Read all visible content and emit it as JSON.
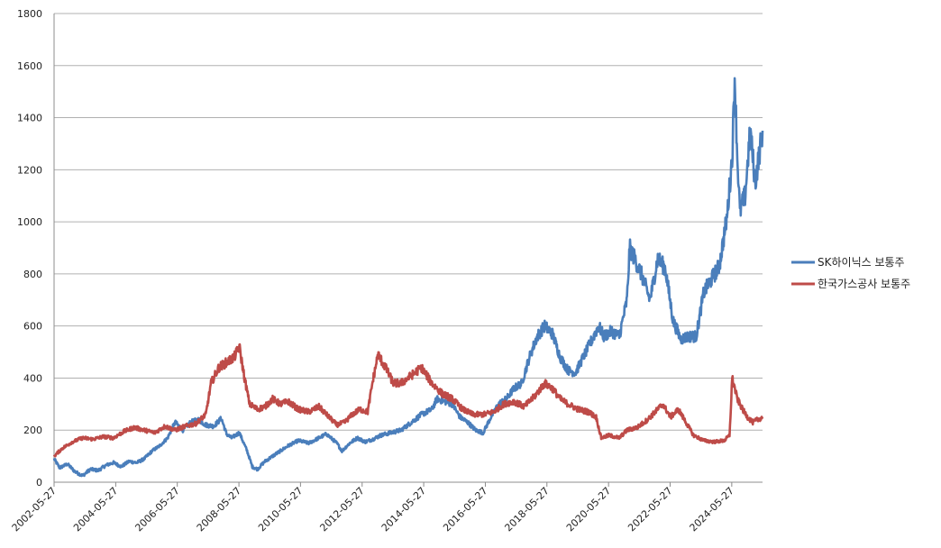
{
  "chart_data": {
    "type": "line",
    "title": "",
    "xlabel": "",
    "ylabel": "",
    "ylim": [
      0,
      1800
    ],
    "yticks": [
      0,
      200,
      400,
      600,
      800,
      1000,
      1200,
      1400,
      1600,
      1800
    ],
    "xlim": [
      "2002-05-27",
      "2025-05-27"
    ],
    "xtick_labels": [
      "2002-05-27",
      "2004-05-27",
      "2006-05-27",
      "2008-05-27",
      "2010-05-27",
      "2012-05-27",
      "2014-05-27",
      "2016-05-27",
      "2018-05-27",
      "2020-05-27",
      "2022-05-27",
      "2024-05-27"
    ],
    "grid": "horizontal",
    "legend": "right",
    "series": [
      {
        "name": "SK하이닉스 보통주",
        "color": "#4a7ebb",
        "points": [
          [
            "2002-05-27",
            90
          ],
          [
            "2002-08-01",
            55
          ],
          [
            "2002-11-01",
            70
          ],
          [
            "2003-02-01",
            40
          ],
          [
            "2003-05-01",
            25
          ],
          [
            "2003-08-01",
            50
          ],
          [
            "2003-11-01",
            45
          ],
          [
            "2004-02-01",
            65
          ],
          [
            "2004-05-01",
            75
          ],
          [
            "2004-08-01",
            60
          ],
          [
            "2004-11-01",
            80
          ],
          [
            "2005-02-01",
            75
          ],
          [
            "2005-05-01",
            90
          ],
          [
            "2005-08-01",
            120
          ],
          [
            "2005-11-01",
            140
          ],
          [
            "2006-02-01",
            170
          ],
          [
            "2006-05-01",
            230
          ],
          [
            "2006-08-01",
            200
          ],
          [
            "2006-11-01",
            230
          ],
          [
            "2007-02-01",
            240
          ],
          [
            "2007-05-01",
            220
          ],
          [
            "2007-08-01",
            215
          ],
          [
            "2007-11-01",
            245
          ],
          [
            "2008-01-01",
            185
          ],
          [
            "2008-03-01",
            170
          ],
          [
            "2008-06-01",
            190
          ],
          [
            "2008-09-01",
            120
          ],
          [
            "2008-11-01",
            60
          ],
          [
            "2009-01-01",
            50
          ],
          [
            "2009-04-01",
            80
          ],
          [
            "2009-07-01",
            100
          ],
          [
            "2009-10-01",
            120
          ],
          [
            "2010-01-01",
            140
          ],
          [
            "2010-05-01",
            160
          ],
          [
            "2010-09-01",
            150
          ],
          [
            "2011-01-01",
            170
          ],
          [
            "2011-04-01",
            185
          ],
          [
            "2011-08-01",
            150
          ],
          [
            "2011-10-01",
            120
          ],
          [
            "2012-01-01",
            150
          ],
          [
            "2012-04-01",
            170
          ],
          [
            "2012-07-01",
            155
          ],
          [
            "2012-10-01",
            165
          ],
          [
            "2013-01-01",
            180
          ],
          [
            "2013-05-01",
            190
          ],
          [
            "2013-09-01",
            200
          ],
          [
            "2014-01-01",
            230
          ],
          [
            "2014-05-01",
            260
          ],
          [
            "2014-09-01",
            280
          ],
          [
            "2014-11-01",
            320
          ],
          [
            "2015-02-01",
            310
          ],
          [
            "2015-05-01",
            300
          ],
          [
            "2015-08-01",
            250
          ],
          [
            "2015-11-01",
            230
          ],
          [
            "2016-02-01",
            200
          ],
          [
            "2016-05-01",
            190
          ],
          [
            "2016-08-01",
            250
          ],
          [
            "2016-11-01",
            300
          ],
          [
            "2017-02-01",
            320
          ],
          [
            "2017-05-01",
            360
          ],
          [
            "2017-08-01",
            380
          ],
          [
            "2017-11-01",
            480
          ],
          [
            "2018-02-01",
            560
          ],
          [
            "2018-05-01",
            600
          ],
          [
            "2018-08-01",
            570
          ],
          [
            "2018-11-01",
            480
          ],
          [
            "2019-02-01",
            430
          ],
          [
            "2019-05-01",
            420
          ],
          [
            "2019-08-01",
            480
          ],
          [
            "2019-11-01",
            540
          ],
          [
            "2020-02-01",
            600
          ],
          [
            "2020-04-01",
            560
          ],
          [
            "2020-07-01",
            580
          ],
          [
            "2020-10-01",
            560
          ],
          [
            "2021-01-01",
            700
          ],
          [
            "2021-02-01",
            900
          ],
          [
            "2021-04-01",
            860
          ],
          [
            "2021-07-01",
            790
          ],
          [
            "2021-10-01",
            700
          ],
          [
            "2022-01-01",
            860
          ],
          [
            "2022-04-01",
            820
          ],
          [
            "2022-07-01",
            620
          ],
          [
            "2022-10-01",
            550
          ],
          [
            "2023-01-01",
            560
          ],
          [
            "2023-04-01",
            560
          ],
          [
            "2023-07-01",
            730
          ],
          [
            "2023-10-01",
            780
          ],
          [
            "2024-01-01",
            830
          ],
          [
            "2024-04-01",
            1020
          ],
          [
            "2024-06-01",
            1250
          ],
          [
            "2024-07-01",
            1560
          ],
          [
            "2024-08-01",
            1250
          ],
          [
            "2024-09-01",
            1040
          ],
          [
            "2024-11-01",
            1100
          ],
          [
            "2025-01-01",
            1350
          ],
          [
            "2025-03-01",
            1150
          ],
          [
            "2025-05-27",
            1350
          ]
        ]
      },
      {
        "name": "한국가스공사 보통주",
        "color": "#be4b48",
        "points": [
          [
            "2002-05-27",
            100
          ],
          [
            "2002-09-01",
            130
          ],
          [
            "2003-01-01",
            155
          ],
          [
            "2003-05-01",
            170
          ],
          [
            "2003-09-01",
            165
          ],
          [
            "2004-01-01",
            175
          ],
          [
            "2004-05-01",
            170
          ],
          [
            "2004-09-01",
            195
          ],
          [
            "2005-01-01",
            210
          ],
          [
            "2005-05-01",
            200
          ],
          [
            "2005-09-01",
            190
          ],
          [
            "2006-01-01",
            215
          ],
          [
            "2006-05-01",
            200
          ],
          [
            "2006-09-01",
            215
          ],
          [
            "2007-01-01",
            225
          ],
          [
            "2007-05-01",
            260
          ],
          [
            "2007-07-01",
            380
          ],
          [
            "2007-10-01",
            440
          ],
          [
            "2008-01-01",
            460
          ],
          [
            "2008-04-01",
            480
          ],
          [
            "2008-06-01",
            520
          ],
          [
            "2008-08-01",
            400
          ],
          [
            "2008-10-01",
            300
          ],
          [
            "2009-01-01",
            280
          ],
          [
            "2009-04-01",
            290
          ],
          [
            "2009-07-01",
            320
          ],
          [
            "2009-10-01",
            300
          ],
          [
            "2010-01-01",
            310
          ],
          [
            "2010-05-01",
            280
          ],
          [
            "2010-09-01",
            270
          ],
          [
            "2011-01-01",
            290
          ],
          [
            "2011-04-01",
            260
          ],
          [
            "2011-08-01",
            220
          ],
          [
            "2011-11-01",
            230
          ],
          [
            "2012-02-01",
            260
          ],
          [
            "2012-05-01",
            280
          ],
          [
            "2012-08-01",
            270
          ],
          [
            "2012-10-01",
            390
          ],
          [
            "2012-12-01",
            490
          ],
          [
            "2013-03-01",
            440
          ],
          [
            "2013-06-01",
            380
          ],
          [
            "2013-09-01",
            380
          ],
          [
            "2014-01-01",
            410
          ],
          [
            "2014-05-01",
            440
          ],
          [
            "2014-09-01",
            380
          ],
          [
            "2015-01-01",
            340
          ],
          [
            "2015-05-01",
            320
          ],
          [
            "2015-09-01",
            280
          ],
          [
            "2016-01-01",
            260
          ],
          [
            "2016-05-01",
            260
          ],
          [
            "2016-09-01",
            270
          ],
          [
            "2017-01-01",
            300
          ],
          [
            "2017-05-01",
            310
          ],
          [
            "2017-09-01",
            290
          ],
          [
            "2018-01-01",
            330
          ],
          [
            "2018-05-01",
            380
          ],
          [
            "2018-08-01",
            360
          ],
          [
            "2018-11-01",
            320
          ],
          [
            "2019-02-01",
            300
          ],
          [
            "2019-06-01",
            280
          ],
          [
            "2019-10-01",
            270
          ],
          [
            "2020-01-01",
            250
          ],
          [
            "2020-03-01",
            170
          ],
          [
            "2020-06-01",
            180
          ],
          [
            "2020-10-01",
            170
          ],
          [
            "2021-01-01",
            200
          ],
          [
            "2021-05-01",
            210
          ],
          [
            "2021-09-01",
            240
          ],
          [
            "2021-12-01",
            270
          ],
          [
            "2022-03-01",
            300
          ],
          [
            "2022-06-01",
            250
          ],
          [
            "2022-09-01",
            280
          ],
          [
            "2022-12-01",
            230
          ],
          [
            "2023-03-01",
            180
          ],
          [
            "2023-07-01",
            160
          ],
          [
            "2023-11-01",
            155
          ],
          [
            "2024-03-01",
            160
          ],
          [
            "2024-05-01",
            180
          ],
          [
            "2024-06-01",
            400
          ],
          [
            "2024-08-01",
            320
          ],
          [
            "2024-10-01",
            280
          ],
          [
            "2024-12-01",
            250
          ],
          [
            "2025-02-01",
            230
          ],
          [
            "2025-05-27",
            250
          ]
        ]
      }
    ]
  }
}
